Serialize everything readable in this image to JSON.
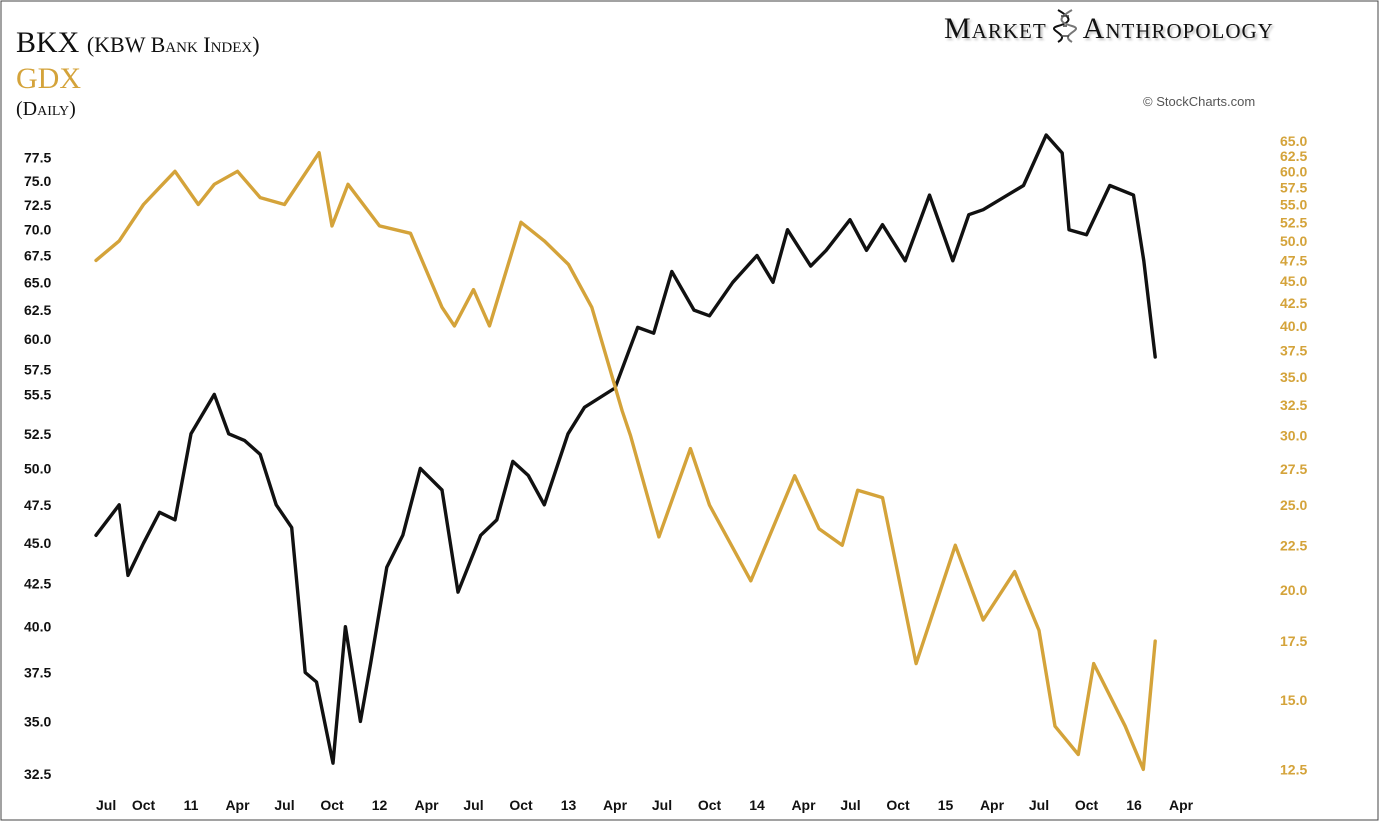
{
  "header": {
    "title": "BKX",
    "subtitle": "(KBW Bank Index)",
    "second_series_title": "GDX",
    "period": "(Daily)",
    "brand_left": "Market",
    "brand_right": "Anthropology",
    "credit": "© StockCharts.com"
  },
  "colors": {
    "bkx": "#111111",
    "gdx": "#d4a33a",
    "background": "#ffffff",
    "frame": "#444444"
  },
  "chart_data": {
    "type": "line",
    "x_tick_labels": [
      "Jul",
      "Oct",
      "11",
      "Apr",
      "Jul",
      "Oct",
      "12",
      "Apr",
      "Jul",
      "Oct",
      "13",
      "Apr",
      "Jul",
      "Oct",
      "14",
      "Apr",
      "Jul",
      "Oct",
      "15",
      "Apr",
      "Jul",
      "Oct",
      "16",
      "Apr"
    ],
    "x_range": [
      "2010-07-01",
      "2016-04-30"
    ],
    "y_left": {
      "series": "BKX",
      "scale": "log",
      "range": [
        32.0,
        80.0
      ],
      "ticks": [
        "32.5",
        "35.0",
        "37.5",
        "40.0",
        "42.5",
        "45.0",
        "47.5",
        "50.0",
        "52.5",
        "55.5",
        "57.5",
        "60.0",
        "62.5",
        "65.0",
        "67.5",
        "70.0",
        "72.5",
        "75.0",
        "77.5"
      ]
    },
    "y_right": {
      "series": "GDX",
      "scale": "log",
      "range": [
        12.0,
        66.0
      ],
      "ticks": [
        "12.5",
        "15.0",
        "17.5",
        "20.0",
        "22.5",
        "25.0",
        "27.5",
        "30.0",
        "32.5",
        "35.0",
        "37.5",
        "40.0",
        "42.5",
        "45.0",
        "47.5",
        "50.0",
        "52.5",
        "55.0",
        "57.5",
        "60.0",
        "62.5",
        "65.0"
      ]
    },
    "series": [
      {
        "name": "BKX",
        "axis": "left",
        "points": [
          [
            "2010-07-01",
            45.5
          ],
          [
            "2010-08-15",
            47.5
          ],
          [
            "2010-09-01",
            43.0
          ],
          [
            "2010-10-01",
            45.0
          ],
          [
            "2010-11-01",
            47.0
          ],
          [
            "2010-12-01",
            46.5
          ],
          [
            "2011-01-01",
            52.5
          ],
          [
            "2011-02-15",
            55.5
          ],
          [
            "2011-03-15",
            52.5
          ],
          [
            "2011-04-15",
            52.0
          ],
          [
            "2011-05-15",
            51.0
          ],
          [
            "2011-06-15",
            47.5
          ],
          [
            "2011-07-15",
            46.0
          ],
          [
            "2011-08-10",
            37.5
          ],
          [
            "2011-09-01",
            37.0
          ],
          [
            "2011-10-03",
            33.0
          ],
          [
            "2011-10-27",
            40.0
          ],
          [
            "2011-11-25",
            35.0
          ],
          [
            "2011-12-15",
            38.0
          ],
          [
            "2012-01-15",
            43.5
          ],
          [
            "2012-02-15",
            45.5
          ],
          [
            "2012-03-20",
            50.0
          ],
          [
            "2012-05-01",
            48.5
          ],
          [
            "2012-06-01",
            42.0
          ],
          [
            "2012-07-15",
            45.5
          ],
          [
            "2012-08-15",
            46.5
          ],
          [
            "2012-09-15",
            50.5
          ],
          [
            "2012-10-15",
            49.5
          ],
          [
            "2012-11-15",
            47.5
          ],
          [
            "2012-12-31",
            52.5
          ],
          [
            "2013-02-01",
            54.5
          ],
          [
            "2013-04-01",
            56.0
          ],
          [
            "2013-05-15",
            61.0
          ],
          [
            "2013-06-15",
            60.5
          ],
          [
            "2013-07-20",
            66.0
          ],
          [
            "2013-09-01",
            62.5
          ],
          [
            "2013-10-01",
            62.0
          ],
          [
            "2013-11-15",
            65.0
          ],
          [
            "2014-01-01",
            67.5
          ],
          [
            "2014-02-01",
            65.0
          ],
          [
            "2014-03-01",
            70.0
          ],
          [
            "2014-04-15",
            66.5
          ],
          [
            "2014-05-15",
            68.0
          ],
          [
            "2014-06-30",
            71.0
          ],
          [
            "2014-08-01",
            68.0
          ],
          [
            "2014-09-01",
            70.5
          ],
          [
            "2014-10-15",
            67.0
          ],
          [
            "2014-12-01",
            73.5
          ],
          [
            "2015-01-15",
            67.0
          ],
          [
            "2015-02-15",
            71.5
          ],
          [
            "2015-03-15",
            72.0
          ],
          [
            "2015-05-01",
            73.5
          ],
          [
            "2015-06-01",
            74.5
          ],
          [
            "2015-07-15",
            80.0
          ],
          [
            "2015-08-15",
            78.0
          ],
          [
            "2015-08-28",
            70.0
          ],
          [
            "2015-10-01",
            69.5
          ],
          [
            "2015-11-15",
            74.5
          ],
          [
            "2015-12-31",
            73.5
          ],
          [
            "2016-01-20",
            67.0
          ],
          [
            "2016-02-11",
            58.5
          ]
        ]
      },
      {
        "name": "GDX",
        "axis": "right",
        "points": [
          [
            "2010-07-01",
            47.5
          ],
          [
            "2010-08-15",
            50.0
          ],
          [
            "2010-10-01",
            55.0
          ],
          [
            "2010-11-01",
            57.5
          ],
          [
            "2010-12-01",
            60.0
          ],
          [
            "2011-01-15",
            55.0
          ],
          [
            "2011-02-15",
            58.0
          ],
          [
            "2011-04-01",
            60.0
          ],
          [
            "2011-05-15",
            56.0
          ],
          [
            "2011-07-01",
            55.0
          ],
          [
            "2011-09-06",
            63.0
          ],
          [
            "2011-10-01",
            52.0
          ],
          [
            "2011-11-01",
            58.0
          ],
          [
            "2012-01-01",
            52.0
          ],
          [
            "2012-03-01",
            51.0
          ],
          [
            "2012-05-01",
            42.0
          ],
          [
            "2012-05-25",
            40.0
          ],
          [
            "2012-07-01",
            44.0
          ],
          [
            "2012-08-01",
            40.0
          ],
          [
            "2012-10-01",
            52.5
          ],
          [
            "2012-11-15",
            50.0
          ],
          [
            "2013-01-01",
            47.0
          ],
          [
            "2013-02-15",
            42.0
          ],
          [
            "2013-04-15",
            32.0
          ],
          [
            "2013-05-01",
            30.0
          ],
          [
            "2013-06-25",
            23.0
          ],
          [
            "2013-08-25",
            29.0
          ],
          [
            "2013-10-01",
            25.0
          ],
          [
            "2013-12-20",
            20.5
          ],
          [
            "2014-03-15",
            27.0
          ],
          [
            "2014-05-01",
            23.5
          ],
          [
            "2014-06-15",
            22.5
          ],
          [
            "2014-07-15",
            26.0
          ],
          [
            "2014-09-01",
            25.5
          ],
          [
            "2014-11-05",
            16.5
          ],
          [
            "2015-01-20",
            22.5
          ],
          [
            "2015-03-15",
            18.5
          ],
          [
            "2015-05-15",
            21.0
          ],
          [
            "2015-07-01",
            18.0
          ],
          [
            "2015-08-01",
            14.0
          ],
          [
            "2015-09-15",
            13.0
          ],
          [
            "2015-10-15",
            16.5
          ],
          [
            "2015-12-15",
            14.0
          ],
          [
            "2016-01-19",
            12.5
          ],
          [
            "2016-02-11",
            17.5
          ]
        ]
      }
    ]
  }
}
